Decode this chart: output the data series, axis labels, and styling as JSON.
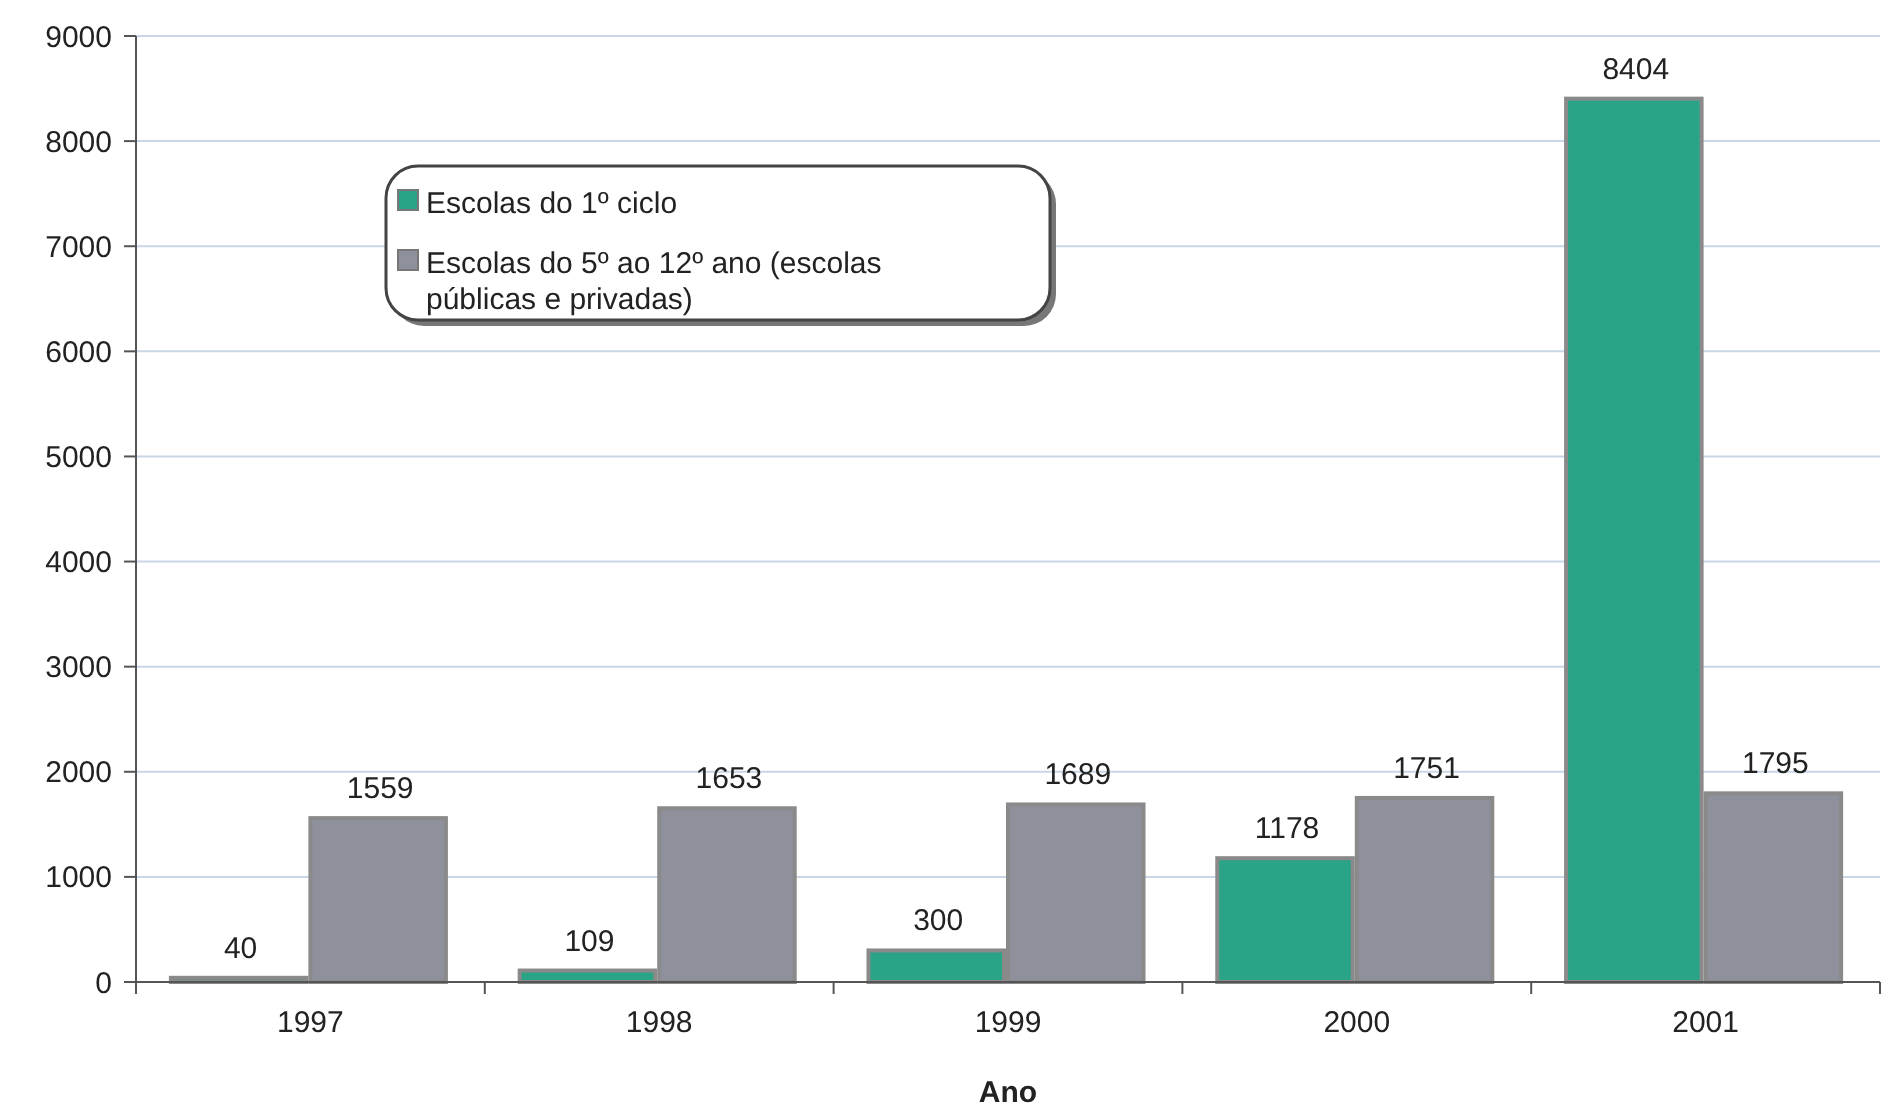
{
  "chart_data": {
    "type": "bar",
    "xlabel": "Ano",
    "categories": [
      "1997",
      "1998",
      "1999",
      "2000",
      "2001"
    ],
    "series": [
      {
        "name": "Escolas do 1º ciclo",
        "color": "#2aa486",
        "values": [
          40,
          109,
          300,
          1178,
          8404
        ]
      },
      {
        "name": "Escolas do 5º ao 12º ano (escolas públicas e privadas)",
        "color": "#8e919c",
        "values": [
          1559,
          1653,
          1689,
          1751,
          1795
        ]
      }
    ],
    "ylim": [
      0,
      9000
    ],
    "yticks": [
      0,
      1000,
      2000,
      3000,
      4000,
      5000,
      6000,
      7000,
      8000,
      9000
    ],
    "grid": "y",
    "legend": "top left",
    "data_labels": true
  }
}
